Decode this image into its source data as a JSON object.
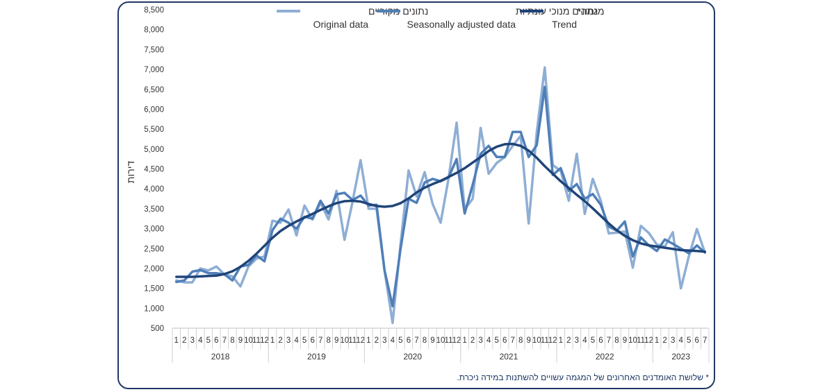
{
  "chart_data": {
    "type": "line",
    "ylabel": "דירות",
    "ylim": [
      500,
      8500
    ],
    "yticks": [
      "500",
      "1,000",
      "1,500",
      "2,000",
      "2,500",
      "3,000",
      "3,500",
      "4,000",
      "4,500",
      "5,000",
      "5,500",
      "6,000",
      "6,500",
      "7,000",
      "7,500",
      "8,000",
      "8,500"
    ],
    "ytick_values": [
      500,
      1000,
      1500,
      2000,
      2500,
      3000,
      3500,
      4000,
      4500,
      5000,
      5500,
      6000,
      6500,
      7000,
      7500,
      8000,
      8500
    ],
    "years": [
      {
        "label": "2018",
        "months": [
          "1",
          "2",
          "3",
          "4",
          "5",
          "6",
          "7",
          "8",
          "9",
          "10",
          "11",
          "12"
        ]
      },
      {
        "label": "2019",
        "months": [
          "1",
          "2",
          "3",
          "4",
          "5",
          "6",
          "7",
          "8",
          "9",
          "10",
          "11",
          "12"
        ]
      },
      {
        "label": "2020",
        "months": [
          "1",
          "2",
          "3",
          "4",
          "5",
          "6",
          "7",
          "8",
          "9",
          "10",
          "11",
          "12"
        ]
      },
      {
        "label": "2021",
        "months": [
          "1",
          "2",
          "3",
          "4",
          "5",
          "6",
          "7",
          "8",
          "9",
          "10",
          "11",
          "12"
        ]
      },
      {
        "label": "2022",
        "months": [
          "1",
          "2",
          "3",
          "4",
          "5",
          "6",
          "7",
          "8",
          "9",
          "10",
          "11",
          "12"
        ]
      },
      {
        "label": "2023",
        "months": [
          "1",
          "2",
          "3",
          "4",
          "5",
          "6",
          "7"
        ]
      }
    ],
    "legend": [
      {
        "hebrew": "נתונים מקוריים",
        "english": "Original data",
        "color": "#8eaed4",
        "width": 3.5
      },
      {
        "hebrew": "נתונים מנוכי עונתיות",
        "english": "Seasonally adjusted data",
        "color": "#4f7fb8",
        "width": 3.5
      },
      {
        "hebrew": "מגמה*",
        "english": "Trend",
        "color": "#1f4478",
        "width": 3.5
      }
    ],
    "series": [
      {
        "name": "Original data",
        "color": "#8eaed4",
        "values": [
          1700,
          1650,
          1650,
          2000,
          1950,
          2050,
          1850,
          1800,
          1550,
          2050,
          2250,
          2300,
          3200,
          3150,
          3480,
          2830,
          3580,
          3230,
          3650,
          3230,
          3950,
          2720,
          3680,
          4720,
          3500,
          3500,
          1950,
          630,
          2620,
          4460,
          3810,
          4420,
          3620,
          3150,
          4270,
          5660,
          3480,
          3750,
          5530,
          4380,
          4650,
          4800,
          5080,
          5330,
          3130,
          5420,
          7050,
          4600,
          4450,
          3700,
          4880,
          3370,
          4250,
          3700,
          2880,
          2900,
          2930,
          2020,
          3070,
          2890,
          2600,
          2550,
          2910,
          1500,
          2310,
          2990,
          2400
        ]
      },
      {
        "name": "Seasonally adjusted data",
        "color": "#4f7fb8",
        "values": [
          1660,
          1700,
          1920,
          1960,
          1880,
          1880,
          1850,
          1700,
          2050,
          2090,
          2330,
          2180,
          2960,
          3250,
          3150,
          3000,
          3300,
          3250,
          3700,
          3380,
          3860,
          3900,
          3720,
          3830,
          3580,
          3600,
          1950,
          1050,
          2500,
          3750,
          3650,
          4160,
          4250,
          4190,
          4290,
          4750,
          3380,
          4100,
          4880,
          5080,
          4800,
          4800,
          5430,
          5430,
          4800,
          5100,
          6560,
          4350,
          4520,
          3950,
          4120,
          3750,
          3870,
          3600,
          3050,
          2950,
          3180,
          2300,
          2780,
          2580,
          2440,
          2730,
          2620,
          2500,
          2380,
          2580,
          2400
        ]
      },
      {
        "name": "Trend",
        "color": "#1f4478",
        "values": [
          1790,
          1790,
          1790,
          1800,
          1810,
          1820,
          1860,
          1930,
          2040,
          2190,
          2370,
          2570,
          2770,
          2940,
          3070,
          3180,
          3280,
          3370,
          3470,
          3560,
          3640,
          3690,
          3700,
          3680,
          3620,
          3570,
          3550,
          3570,
          3640,
          3760,
          3910,
          4030,
          4120,
          4200,
          4300,
          4400,
          4520,
          4660,
          4800,
          4950,
          5060,
          5120,
          5130,
          5080,
          4960,
          4780,
          4570,
          4380,
          4190,
          4020,
          3850,
          3690,
          3510,
          3320,
          3130,
          2960,
          2820,
          2710,
          2630,
          2580,
          2550,
          2520,
          2490,
          2460,
          2450,
          2440,
          2420
        ]
      }
    ]
  },
  "footnote": "* שלושת האומדנים האחרונים של המגמה עשויים להשתנות במידה ניכרת."
}
